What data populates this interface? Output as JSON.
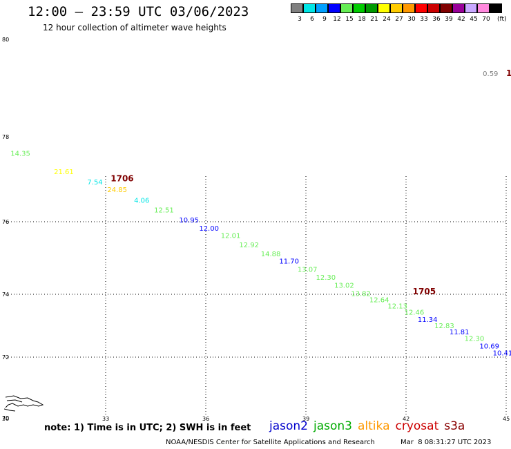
{
  "title": "12:00 – 23:59 UTC 03/06/2023",
  "subtitle": "12 hour collection of altimeter wave heights",
  "colorbar": {
    "swatches": [
      {
        "label": "3",
        "color": "#808080"
      },
      {
        "label": "6",
        "color": "#00e5e5"
      },
      {
        "label": "9",
        "color": "#00a0ff"
      },
      {
        "label": "12",
        "color": "#0000ff"
      },
      {
        "label": "15",
        "color": "#66ee55"
      },
      {
        "label": "18",
        "color": "#00cc00"
      },
      {
        "label": "21",
        "color": "#009900"
      },
      {
        "label": "24",
        "color": "#ffff00"
      },
      {
        "label": "27",
        "color": "#ffcc00"
      },
      {
        "label": "30",
        "color": "#ff9900"
      },
      {
        "label": "33",
        "color": "#ff0000"
      },
      {
        "label": "36",
        "color": "#cc0000"
      },
      {
        "label": "39",
        "color": "#800000"
      },
      {
        "label": "42",
        "color": "#990099"
      },
      {
        "label": "45",
        "color": "#c9a8ff"
      },
      {
        "label": "70",
        "color": "#ff88dd"
      },
      {
        "label": "",
        "color": "#000000"
      }
    ],
    "unit": "(ft)"
  },
  "map": {
    "lat_labels": [
      "80",
      "78",
      "76",
      "74",
      "72",
      "70"
    ],
    "lon_labels": [
      "30",
      "33",
      "36",
      "39",
      "42",
      "45"
    ],
    "grid_lat": [
      76,
      74,
      72
    ],
    "grid_lon": [
      33,
      36,
      39,
      42,
      45
    ],
    "lat_range": [
      70,
      80
    ],
    "lon_range": [
      30,
      45
    ]
  },
  "wave_heights": [
    {
      "value": "14.35",
      "lat": 77.55,
      "lon": 30.15,
      "color": "#66ee55"
    },
    {
      "value": "21.61",
      "lat": 77.12,
      "lon": 31.45,
      "color": "#ffff00"
    },
    {
      "value": "7.54",
      "lat": 76.88,
      "lon": 32.45,
      "color": "#00e5e5"
    },
    {
      "value": "24.85",
      "lat": 76.7,
      "lon": 33.05,
      "color": "#ffcc00"
    },
    {
      "value": "4.06",
      "lat": 76.45,
      "lon": 33.85,
      "color": "#00e5e5"
    },
    {
      "value": "12.51",
      "lat": 76.22,
      "lon": 34.45,
      "color": "#66ee55"
    },
    {
      "value": "10.95",
      "lat": 75.98,
      "lon": 35.2,
      "color": "#0000ff"
    },
    {
      "value": "12.00",
      "lat": 75.75,
      "lon": 35.8,
      "color": "#0000ff"
    },
    {
      "value": "12.01",
      "lat": 75.55,
      "lon": 36.45,
      "color": "#66ee55"
    },
    {
      "value": "12.92",
      "lat": 75.3,
      "lon": 37.0,
      "color": "#66ee55"
    },
    {
      "value": "14.88",
      "lat": 75.05,
      "lon": 37.65,
      "color": "#66ee55"
    },
    {
      "value": "11.70",
      "lat": 74.85,
      "lon": 38.2,
      "color": "#0000ff"
    },
    {
      "value": "13.07",
      "lat": 74.62,
      "lon": 38.75,
      "color": "#66ee55"
    },
    {
      "value": "12.30",
      "lat": 74.4,
      "lon": 39.3,
      "color": "#66ee55"
    },
    {
      "value": "13.02",
      "lat": 74.18,
      "lon": 39.85,
      "color": "#66ee55"
    },
    {
      "value": "13.82",
      "lat": 73.95,
      "lon": 40.35,
      "color": "#66ee55"
    },
    {
      "value": "12.64",
      "lat": 73.75,
      "lon": 40.9,
      "color": "#66ee55"
    },
    {
      "value": "12.13",
      "lat": 73.55,
      "lon": 41.45,
      "color": "#66ee55"
    },
    {
      "value": "12.46",
      "lat": 73.35,
      "lon": 41.95,
      "color": "#66ee55"
    },
    {
      "value": "11.34",
      "lat": 73.12,
      "lon": 42.35,
      "color": "#0000ff"
    },
    {
      "value": "12.83",
      "lat": 72.92,
      "lon": 42.85,
      "color": "#66ee55"
    },
    {
      "value": "11.81",
      "lat": 72.72,
      "lon": 43.3,
      "color": "#0000ff"
    },
    {
      "value": "12.30",
      "lat": 72.52,
      "lon": 43.75,
      "color": "#66ee55"
    },
    {
      "value": "10.69",
      "lat": 72.28,
      "lon": 44.2,
      "color": "#0000ff"
    },
    {
      "value": "10.41",
      "lat": 72.06,
      "lon": 44.6,
      "color": "#0000ff"
    },
    {
      "value": "0.59",
      "lat": 79.25,
      "lon": 44.3,
      "color": "#808080"
    }
  ],
  "track_labels": [
    {
      "value": "1706",
      "lat": 76.95,
      "lon": 33.15,
      "color": "#800000"
    },
    {
      "value": "1705",
      "lat": 74.0,
      "lon": 42.2,
      "color": "#800000"
    },
    {
      "value": "1",
      "lat": 79.25,
      "lon": 45.0,
      "color": "#800000"
    }
  ],
  "note": "note: 1) Time is in UTC; 2) SWH is in feet",
  "legend": [
    {
      "name": "jason2",
      "color": "#0000cc"
    },
    {
      "name": "jason3",
      "color": "#00aa00"
    },
    {
      "name": "altika",
      "color": "#ff9900"
    },
    {
      "name": "cryosat",
      "color": "#cc0000"
    },
    {
      "name": "s3a",
      "color": "#880000"
    }
  ],
  "credit": "NOAA/NESDIS Center for Satellite Applications and Research",
  "timestamp": "Mar  8 08:31:27 UTC 2023"
}
